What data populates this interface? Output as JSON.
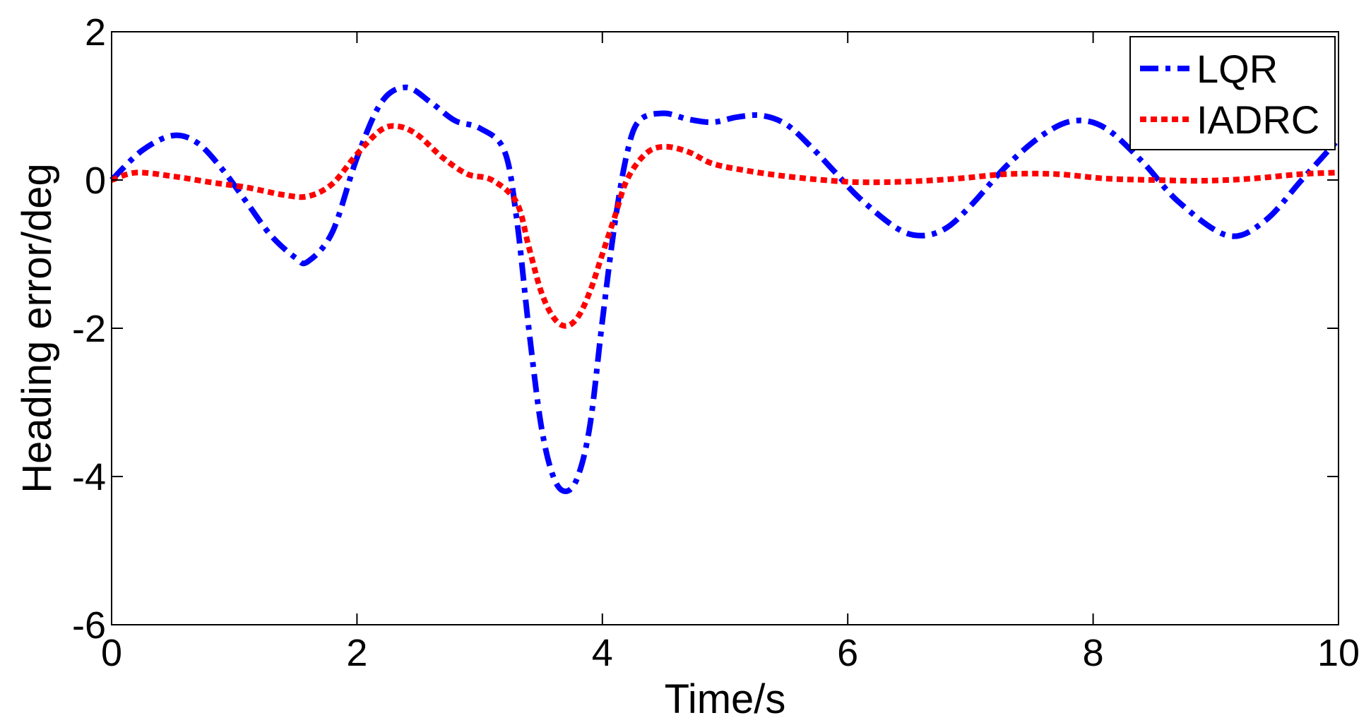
{
  "chart_data": {
    "type": "line",
    "title": "",
    "xlabel": "Time/s",
    "ylabel": "Heading error/deg",
    "xlim": [
      0,
      10
    ],
    "ylim": [
      -6,
      2
    ],
    "xticks": [
      0,
      2,
      4,
      6,
      8,
      10
    ],
    "yticks": [
      -6,
      -4,
      -2,
      0,
      2
    ],
    "xtick_labels": [
      "0",
      "2",
      "4",
      "6",
      "8",
      "10"
    ],
    "ytick_labels": [
      "-6",
      "-4",
      "-2",
      "0",
      "2"
    ],
    "grid": false,
    "legend_position": "top-right",
    "series": [
      {
        "name": "LQR",
        "color": "#0000ff",
        "style": "dash-dot",
        "x": [
          0,
          0.25,
          0.5,
          0.7,
          0.9,
          1.1,
          1.3,
          1.5,
          1.6,
          1.8,
          2.0,
          2.2,
          2.4,
          2.6,
          2.8,
          3.0,
          3.2,
          3.3,
          3.4,
          3.5,
          3.6,
          3.7,
          3.8,
          3.9,
          4.0,
          4.1,
          4.2,
          4.3,
          4.5,
          4.7,
          4.9,
          5.1,
          5.3,
          5.5,
          5.7,
          5.9,
          6.1,
          6.4,
          6.6,
          6.8,
          7.0,
          7.3,
          7.6,
          7.85,
          8.1,
          8.4,
          8.7,
          9.1,
          9.4,
          9.7,
          10.0
        ],
        "y": [
          0,
          0.4,
          0.6,
          0.5,
          0.15,
          -0.3,
          -0.75,
          -1.05,
          -1.1,
          -0.7,
          0.3,
          1.05,
          1.25,
          1.05,
          0.8,
          0.7,
          0.4,
          -0.5,
          -2.0,
          -3.3,
          -4.0,
          -4.2,
          -4.0,
          -3.3,
          -1.9,
          -0.6,
          0.35,
          0.8,
          0.9,
          0.82,
          0.78,
          0.85,
          0.87,
          0.75,
          0.45,
          0.1,
          -0.25,
          -0.65,
          -0.75,
          -0.65,
          -0.35,
          0.2,
          0.62,
          0.8,
          0.7,
          0.25,
          -0.3,
          -0.75,
          -0.55,
          0.0,
          0.55
        ]
      },
      {
        "name": "IADRC",
        "color": "#ff0000",
        "style": "dotted",
        "x": [
          0,
          0.2,
          0.5,
          0.8,
          1.1,
          1.4,
          1.6,
          1.8,
          2.0,
          2.2,
          2.35,
          2.5,
          2.7,
          2.9,
          3.1,
          3.3,
          3.4,
          3.5,
          3.6,
          3.7,
          3.8,
          3.9,
          4.0,
          4.1,
          4.2,
          4.35,
          4.5,
          4.7,
          4.9,
          5.2,
          5.5,
          5.8,
          6.1,
          6.5,
          6.9,
          7.3,
          7.7,
          8.1,
          8.5,
          8.9,
          9.3,
          9.7,
          10.0
        ],
        "y": [
          0,
          0.1,
          0.05,
          -0.03,
          -0.1,
          -0.2,
          -0.22,
          -0.05,
          0.35,
          0.68,
          0.72,
          0.6,
          0.3,
          0.08,
          0.0,
          -0.3,
          -0.9,
          -1.5,
          -1.85,
          -1.97,
          -1.85,
          -1.5,
          -1.0,
          -0.5,
          0.0,
          0.35,
          0.45,
          0.38,
          0.22,
          0.12,
          0.05,
          0.0,
          -0.03,
          -0.02,
          0.02,
          0.08,
          0.08,
          0.02,
          0.0,
          -0.01,
          0.02,
          0.08,
          0.1
        ]
      }
    ]
  }
}
